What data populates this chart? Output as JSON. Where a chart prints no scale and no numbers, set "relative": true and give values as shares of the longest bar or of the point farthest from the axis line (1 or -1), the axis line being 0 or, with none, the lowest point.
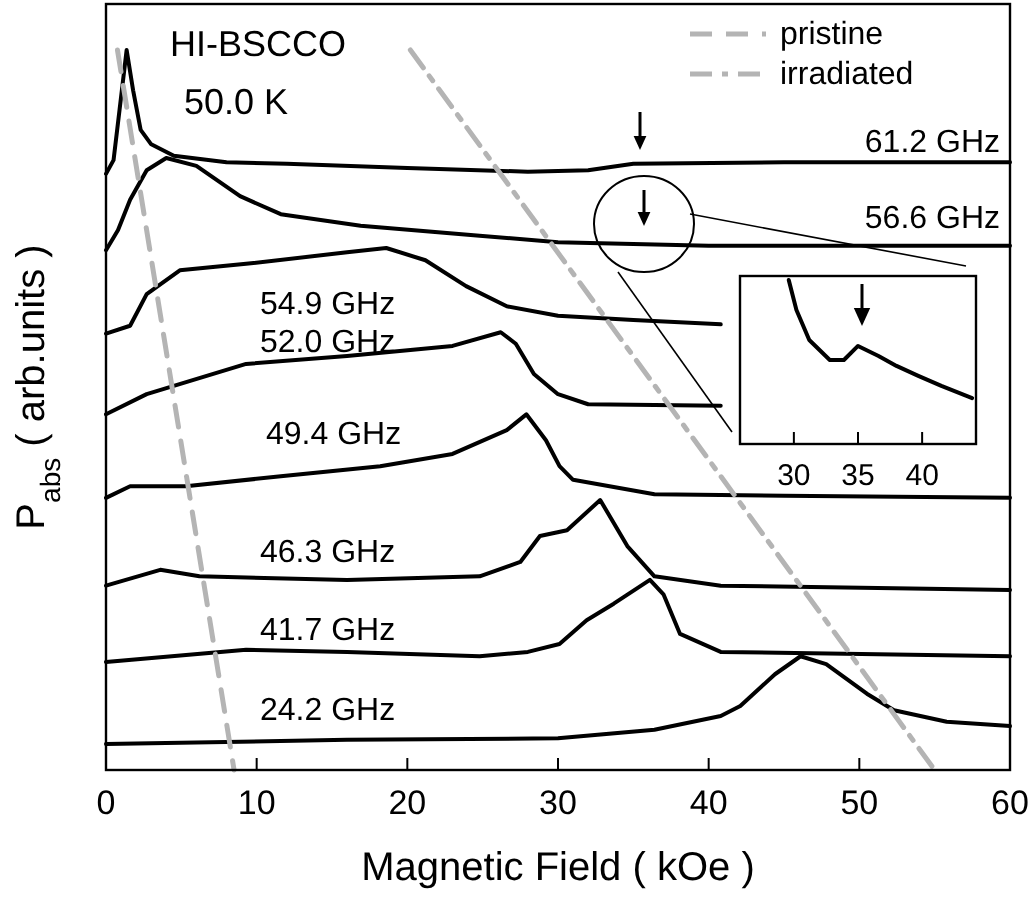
{
  "chart_data": [
    {
      "type": "line",
      "xlabel": "Magnetic Field ( kOe )",
      "ylabel": "P$_{abs}$ ( arb.units )",
      "relative": true,
      "xlim": [
        0,
        60
      ],
      "xticks": [
        0,
        10,
        20,
        30,
        40,
        50,
        60
      ],
      "legend": "top right",
      "annotations": [
        "HI-BSCCO",
        "50.0 K"
      ],
      "series": [
        {
          "name": "61.2 GHz",
          "color": "#000000",
          "x": [
            0,
            0.5,
            0.9,
            1.37,
            1.8,
            2.3,
            3,
            4.5,
            8,
            12,
            20,
            28,
            32,
            35,
            45,
            60
          ],
          "values": [
            0.828,
            0.847,
            0.917,
            1,
            0.944,
            0.889,
            0.869,
            0.853,
            0.844,
            0.842,
            0.836,
            0.831,
            0.833,
            0.842,
            0.844,
            0.844
          ]
        },
        {
          "name": "56.6 GHz",
          "color": "#000000",
          "x": [
            0,
            0.8,
            1.6,
            2.7,
            4,
            6,
            8.9,
            11.6,
            16.9,
            24.8,
            30,
            40,
            60
          ],
          "values": [
            0.722,
            0.75,
            0.792,
            0.833,
            0.85,
            0.839,
            0.797,
            0.772,
            0.756,
            0.742,
            0.733,
            0.728,
            0.728
          ]
        },
        {
          "name": "54.9 GHz",
          "color": "#000000",
          "x": [
            0,
            1.6,
            2.7,
            4.9,
            9.3,
            16,
            18.6,
            21.2,
            23.9,
            26.6,
            30,
            35,
            40.8
          ],
          "values": [
            0.606,
            0.617,
            0.661,
            0.694,
            0.703,
            0.719,
            0.725,
            0.708,
            0.672,
            0.644,
            0.631,
            0.625,
            0.619
          ]
        },
        {
          "name": "52.0 GHz",
          "color": "#000000",
          "x": [
            0,
            2.7,
            9.3,
            16,
            23,
            26.2,
            27.2,
            28.4,
            30,
            32,
            40.8
          ],
          "values": [
            0.494,
            0.522,
            0.564,
            0.575,
            0.589,
            0.608,
            0.592,
            0.55,
            0.522,
            0.508,
            0.506
          ]
        },
        {
          "name": "49.4 GHz",
          "color": "#000000",
          "x": [
            0,
            1.6,
            5.3,
            11.6,
            18.2,
            23,
            26.6,
            27.9,
            29.2,
            30.1,
            31,
            36.4,
            45,
            60
          ],
          "values": [
            0.378,
            0.394,
            0.394,
            0.408,
            0.422,
            0.439,
            0.472,
            0.494,
            0.458,
            0.422,
            0.403,
            0.383,
            0.381,
            0.378
          ]
        },
        {
          "name": "46.3 GHz",
          "color": "#000000",
          "x": [
            0,
            3.6,
            6.2,
            16,
            24.8,
            27.5,
            28.8,
            30.6,
            32.8,
            34.6,
            36.4,
            40.8,
            60
          ],
          "values": [
            0.256,
            0.278,
            0.269,
            0.264,
            0.269,
            0.289,
            0.325,
            0.333,
            0.375,
            0.311,
            0.269,
            0.256,
            0.25
          ]
        },
        {
          "name": "41.7 GHz",
          "color": "#000000",
          "x": [
            0,
            9.3,
            16,
            24.8,
            28,
            30.1,
            31.9,
            33.7,
            36.1,
            37,
            38.1,
            40.8,
            60
          ],
          "values": [
            0.15,
            0.167,
            0.164,
            0.158,
            0.164,
            0.175,
            0.208,
            0.231,
            0.264,
            0.244,
            0.189,
            0.164,
            0.158
          ]
        },
        {
          "name": "24.2 GHz",
          "color": "#000000",
          "x": [
            0,
            16,
            30,
            36.4,
            40.8,
            42.1,
            44.4,
            46.1,
            47.8,
            50.5,
            52.3,
            55.8,
            60
          ],
          "values": [
            0.036,
            0.042,
            0.044,
            0.056,
            0.075,
            0.089,
            0.133,
            0.158,
            0.147,
            0.106,
            0.083,
            0.067,
            0.061
          ]
        },
        {
          "name": "pristine",
          "color": "#b4b4b4",
          "line_style": "dashed",
          "x": [
            0.76,
            8.5
          ],
          "values": [
            1,
            0
          ]
        },
        {
          "name": "irradiated",
          "color": "#b4b4b4",
          "line_style": "dashdot",
          "x": [
            20.2,
            55
          ],
          "values": [
            1,
            0
          ]
        }
      ]
    },
    {
      "type": "line",
      "relative": true,
      "xlim": [
        25.8,
        44.2
      ],
      "xticks": [
        30,
        35,
        40
      ],
      "series": [
        {
          "color": "#000000",
          "x": [
            29.6,
            30.2,
            31.2,
            32.8,
            33.9,
            35,
            36.6,
            38,
            39.7,
            41.5,
            43.9
          ],
          "values": [
            1,
            0.817,
            0.634,
            0.512,
            0.512,
            0.598,
            0.537,
            0.476,
            0.415,
            0.354,
            0.28
          ]
        }
      ]
    }
  ]
}
